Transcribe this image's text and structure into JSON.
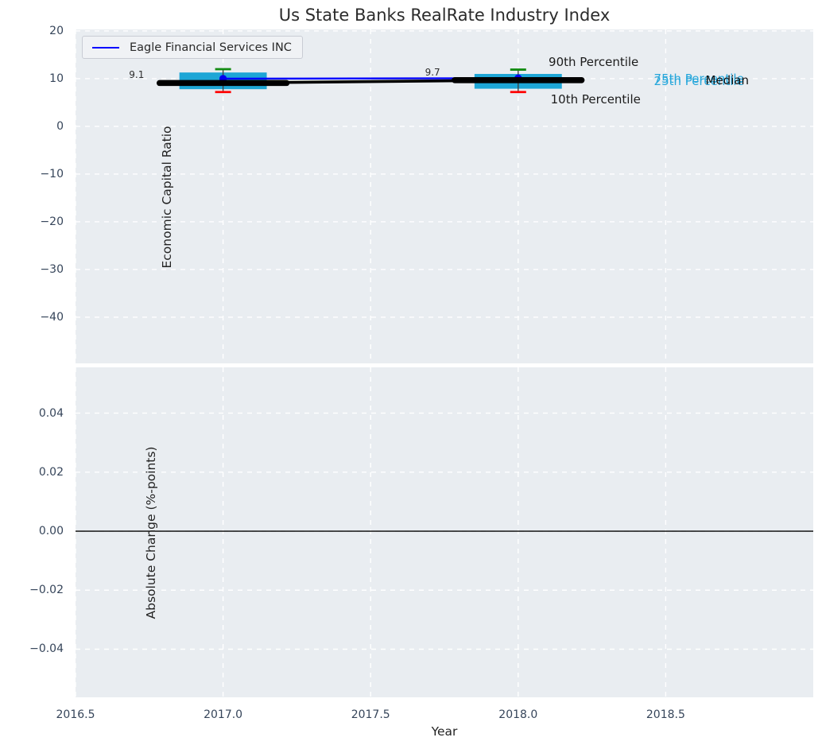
{
  "title": "Us State Banks RealRate Industry Index",
  "colors": {
    "figure_background": "#ffffff",
    "axes_background": "#e9edf1",
    "grid": "#ffffff",
    "company_line": "#0000ff",
    "company_marker": "#0000f0",
    "median_line": "#000000",
    "box_fill": "#1da6d6",
    "whisker": "#404040",
    "p90_cap": "#128b12",
    "p10_cap": "#ff0000",
    "tick_label": "#36455a",
    "cyan_label": "#27a7db",
    "dark_label": "#1c1c1c",
    "zero_line": "#000000"
  },
  "chart_data": [
    {
      "type": "boxplot+line",
      "title": "Us State Banks RealRate Industry Index",
      "ylabel": "Economic Capital Ratio",
      "xlabel": "",
      "xlim": [
        2016.5,
        2019.0
      ],
      "ylim": [
        -49.67,
        20.33
      ],
      "grid": true,
      "legend": {
        "label": "Eagle Financial Services INC",
        "position": "upper left"
      },
      "x": [
        2017,
        2018
      ],
      "series": [
        {
          "name": "Eagle Financial Services INC",
          "type": "line+marker",
          "color": "#0000ff",
          "values": [
            10.0,
            10.1
          ]
        },
        {
          "name": "Industry Median",
          "type": "line",
          "color": "#000000",
          "values": [
            9.1,
            9.7
          ]
        }
      ],
      "boxes": [
        {
          "x": 2017,
          "p10": 7.2,
          "p25": 7.8,
          "median": 9.1,
          "p75": 11.3,
          "p90": 12.0
        },
        {
          "x": 2018,
          "p10": 7.2,
          "p25": 7.9,
          "median": 9.7,
          "p75": 11.0,
          "p90": 11.9
        }
      ],
      "annotations": [
        {
          "text": "9.1",
          "x": 2016.707,
          "y": 10.8
        },
        {
          "text": "9.7",
          "x": 2017.71,
          "y": 11.35
        }
      ],
      "percentile_labels": [
        {
          "text": "90th Percentile",
          "x": 2018.103,
          "y": 13.5,
          "color": "#1c1c1c"
        },
        {
          "text": "10th Percentile",
          "x": 2018.11,
          "y": 5.7,
          "color": "#1c1c1c"
        },
        {
          "text": "75th Percentile",
          "x": 2018.46,
          "y": 9.92,
          "color": "#27a7db"
        },
        {
          "text": "25th Percentile",
          "x": 2018.46,
          "y": 9.55,
          "color": "#27a7db"
        },
        {
          "text": "Median",
          "x": 2018.635,
          "y": 9.7,
          "color": "#111111"
        }
      ],
      "yticks": [
        {
          "v": 20,
          "label": "20"
        },
        {
          "v": 10,
          "label": "10"
        },
        {
          "v": 0,
          "label": "0"
        },
        {
          "v": -10,
          "label": "−10"
        },
        {
          "v": -20,
          "label": "−20"
        },
        {
          "v": -30,
          "label": "−30"
        },
        {
          "v": -40,
          "label": "−40"
        }
      ],
      "xticks": [
        {
          "v": 2016.5,
          "label": ""
        },
        {
          "v": 2017.0,
          "label": ""
        },
        {
          "v": 2017.5,
          "label": ""
        },
        {
          "v": 2018.0,
          "label": ""
        },
        {
          "v": 2018.5,
          "label": ""
        }
      ]
    },
    {
      "type": "line",
      "title": "",
      "ylabel": "Absolute Change (%-points)",
      "xlabel": "Year",
      "xlim": [
        2016.5,
        2019.0
      ],
      "ylim": [
        -0.0563,
        0.0555
      ],
      "grid": true,
      "zero_line": 0.0,
      "series": [],
      "yticks": [
        {
          "v": 0.04,
          "label": "0.04"
        },
        {
          "v": 0.02,
          "label": "0.02"
        },
        {
          "v": 0.0,
          "label": "0.00"
        },
        {
          "v": -0.02,
          "label": "−0.02"
        },
        {
          "v": -0.04,
          "label": "−0.04"
        }
      ],
      "xticks": [
        {
          "v": 2016.5,
          "label": "2016.5"
        },
        {
          "v": 2017.0,
          "label": "2017.0"
        },
        {
          "v": 2017.5,
          "label": "2017.5"
        },
        {
          "v": 2018.0,
          "label": "2018.0"
        },
        {
          "v": 2018.5,
          "label": "2018.5"
        }
      ]
    }
  ]
}
